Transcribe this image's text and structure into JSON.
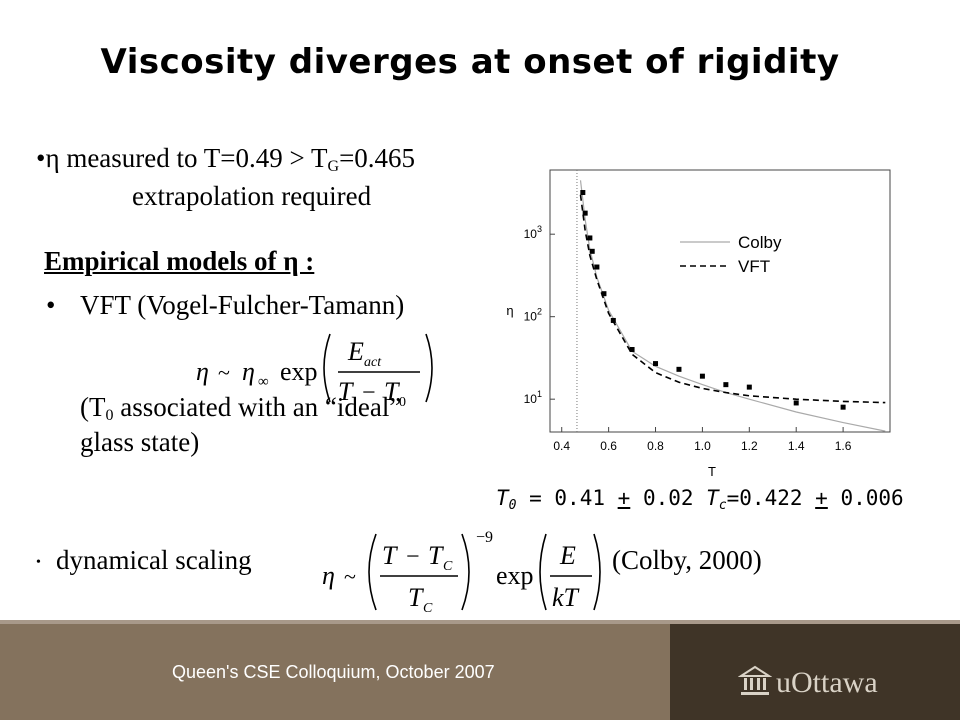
{
  "slide": {
    "title": "Viscosity diverges at onset of rigidity",
    "line1_pre": "•η measured to T=0.49 > T",
    "line1_sub": "G",
    "line1_post": "=0.465",
    "line2": "extrapolation required",
    "models_heading": "Empirical models of η :",
    "vft_bullet": "•",
    "vft_label": "VFT (Vogel-Fulcher-Tamann)",
    "assoc_pre": "(T",
    "assoc_sub": "0",
    "assoc_post": " associated with an “ideal”",
    "assoc_line2": "glass state)",
    "dyn_bullet": "•",
    "dyn_label": "dynamical scaling",
    "colby_ref": "(Colby, 2000)",
    "t0_pre": "T",
    "t0_sub": "0",
    "t0_mid": " = 0.41 ",
    "t0_pm": "+",
    "t0_err": " 0.02  ",
    "tc_pre": "T",
    "tc_sub": "c",
    "tc_mid": "=0.422 ",
    "tc_pm": "+",
    "tc_err": " 0.006"
  },
  "formulas": {
    "vft": {
      "eta": "η",
      "sim": "~",
      "eta_inf": "η",
      "inf": "∞",
      "exp": "exp",
      "E": "E",
      "act": "act",
      "T": "T",
      "minus": "−",
      "T0": "T",
      "zero": "0"
    },
    "dyn": {
      "eta": "η",
      "sim": "~",
      "T": "T",
      "minus": "−",
      "Tc": "T",
      "C": "C",
      "exponent": "−9",
      "exp": "exp",
      "E": "E",
      "kT": "kT"
    }
  },
  "footer": {
    "text": "Queen's CSE Colloquium, October 2007",
    "logo": "uOttawa",
    "bg_left": "#84725d",
    "bg_right": "#3f3427"
  },
  "chart_data": {
    "type": "scatter",
    "xlabel": "T",
    "ylabel": "η",
    "xlim": [
      0.35,
      1.8
    ],
    "ylim": [
      4,
      6000
    ],
    "yscale": "log",
    "x_ticks": [
      "0.4",
      "0.6",
      "0.8",
      "1.0",
      "1.2",
      "1.4",
      "1.6"
    ],
    "y_ticks": [
      {
        "base": "10",
        "exp": "1",
        "value": 10
      },
      {
        "base": "10",
        "exp": "2",
        "value": 100
      },
      {
        "base": "10",
        "exp": "3",
        "value": 1000
      }
    ],
    "vline_x": 0.465,
    "legend": [
      "Colby",
      "VFT"
    ],
    "legend_position": "top-right",
    "series": [
      {
        "name": "data",
        "style": "markers",
        "points": [
          [
            0.49,
            3200
          ],
          [
            0.5,
            1800
          ],
          [
            0.52,
            900
          ],
          [
            0.53,
            620
          ],
          [
            0.55,
            400
          ],
          [
            0.58,
            190
          ],
          [
            0.62,
            90
          ],
          [
            0.7,
            40
          ],
          [
            0.8,
            27
          ],
          [
            0.9,
            23
          ],
          [
            1.0,
            19
          ],
          [
            1.1,
            15
          ],
          [
            1.2,
            14
          ],
          [
            1.4,
            9
          ],
          [
            1.6,
            8
          ]
        ]
      },
      {
        "name": "Colby",
        "style": "solid-gray",
        "points": [
          [
            0.48,
            4500
          ],
          [
            0.5,
            1500
          ],
          [
            0.52,
            650
          ],
          [
            0.55,
            300
          ],
          [
            0.6,
            120
          ],
          [
            0.7,
            38
          ],
          [
            0.8,
            25
          ],
          [
            0.9,
            19
          ],
          [
            1.0,
            15
          ],
          [
            1.1,
            12
          ],
          [
            1.2,
            10
          ],
          [
            1.4,
            7
          ],
          [
            1.6,
            5.2
          ],
          [
            1.78,
            4.1
          ]
        ]
      },
      {
        "name": "VFT",
        "style": "dashed",
        "points": [
          [
            0.48,
            3000
          ],
          [
            0.5,
            1100
          ],
          [
            0.52,
            550
          ],
          [
            0.55,
            280
          ],
          [
            0.6,
            110
          ],
          [
            0.7,
            35
          ],
          [
            0.8,
            21
          ],
          [
            0.9,
            16
          ],
          [
            1.0,
            13.5
          ],
          [
            1.1,
            12
          ],
          [
            1.2,
            11
          ],
          [
            1.4,
            10
          ],
          [
            1.6,
            9.4
          ],
          [
            1.78,
            9.1
          ]
        ]
      }
    ]
  }
}
